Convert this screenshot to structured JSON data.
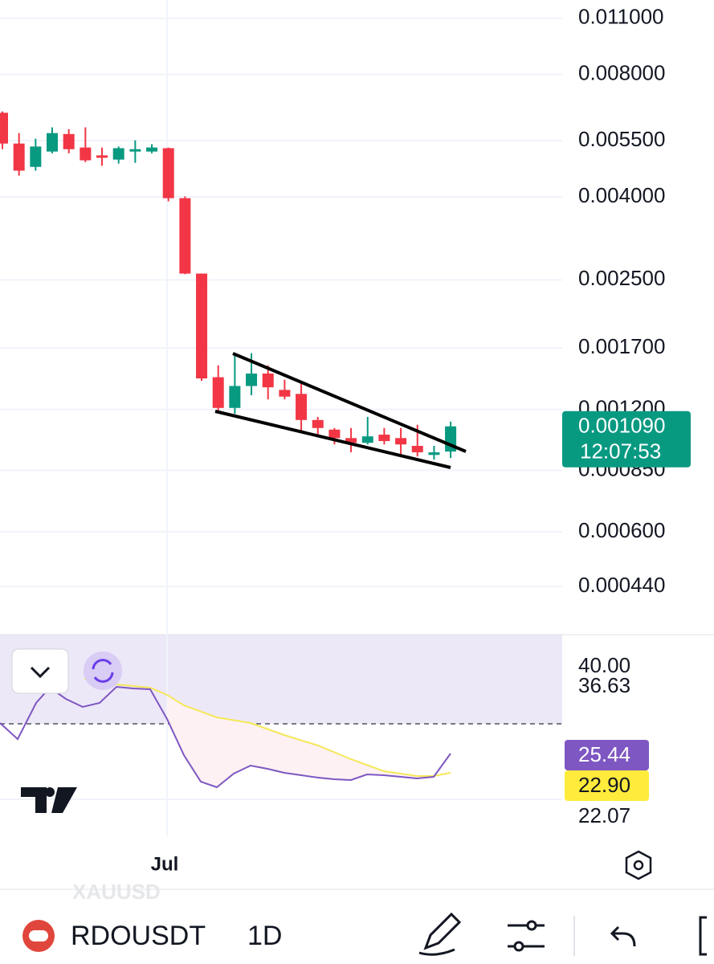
{
  "symbol": "RDOUSDT",
  "interval": "1D",
  "watermark": "XAUUSD",
  "chart_data": {
    "type": "candlestick",
    "log": true,
    "grid": true,
    "up_color": "#089981",
    "down_color": "#f23645",
    "categories": [
      null,
      null,
      null,
      null,
      null,
      null,
      null,
      null,
      null,
      null,
      "Jul",
      null,
      null,
      null,
      null,
      null,
      null,
      null,
      null,
      null,
      null,
      null,
      null,
      null,
      null,
      null,
      null,
      null
    ],
    "candles": {
      "open": [
        0.00644,
        0.00541,
        0.00474,
        0.00517,
        0.00571,
        0.00529,
        0.00506,
        0.00494,
        0.00517,
        0.00517,
        0.00527,
        0.00397,
        0.00259,
        0.00144,
        0.00121,
        0.00137,
        0.00147,
        0.00134,
        0.00131,
        0.00113,
        0.00107,
        0.00102,
        0.000993,
        0.00104,
        0.00102,
        0.000976,
        0.000927,
        0.000945
      ],
      "high": [
        0.00649,
        0.00574,
        0.00556,
        0.00593,
        0.00587,
        0.00593,
        0.00529,
        0.00532,
        0.00551,
        0.00539,
        0.00529,
        0.00401,
        0.00259,
        0.00154,
        0.00163,
        0.00165,
        0.00154,
        0.00142,
        0.00141,
        0.00115,
        0.00108,
        0.00108,
        0.00115,
        0.00108,
        0.00108,
        0.0011,
        0.000976,
        0.00112
      ],
      "low": [
        0.00524,
        0.00451,
        0.00464,
        0.00512,
        0.00512,
        0.00487,
        0.00477,
        0.00483,
        0.00485,
        0.00512,
        0.0039,
        0.00258,
        0.00141,
        0.00119,
        0.00117,
        0.0013,
        0.00127,
        0.00127,
        0.00105,
        0.00104,
        0.000984,
        0.000941,
        0.000984,
        0.000984,
        0.000927,
        0.000919,
        0.000903,
        0.000911
      ],
      "close": [
        0.00541,
        0.00464,
        0.00532,
        0.00574,
        0.00524,
        0.00492,
        0.00499,
        0.00527,
        0.00524,
        0.00529,
        0.00397,
        0.00259,
        0.00143,
        0.00121,
        0.00137,
        0.00147,
        0.00136,
        0.00129,
        0.00113,
        0.00108,
        0.00102,
        0.000993,
        0.00103,
        0.001003,
        0.000984,
        0.000941,
        0.000941,
        0.00109
      ]
    },
    "ylim": [
      0.000335,
      0.0122
    ],
    "yticks": [
      {
        "value": 0.011,
        "label": "0.011000"
      },
      {
        "value": 0.008,
        "label": "0.008000"
      },
      {
        "value": 0.0055,
        "label": "0.005500"
      },
      {
        "value": 0.004,
        "label": "0.004000"
      },
      {
        "value": 0.0025,
        "label": "0.002500"
      },
      {
        "value": 0.0017,
        "label": "0.001700"
      },
      {
        "value": 0.0012,
        "label": "0.001200"
      },
      {
        "value": 0.00085,
        "label": "0.000850"
      },
      {
        "value": 0.0006,
        "label": "0.000600"
      },
      {
        "value": 0.00044,
        "label": "0.000440"
      }
    ],
    "last_price": {
      "value": 0.00109,
      "label": "0.001090"
    },
    "countdown": "12:07:53"
  },
  "indicator": {
    "labels": [
      "40.00",
      "36.63",
      "25.44",
      "22.90",
      "22.07"
    ]
  }
}
